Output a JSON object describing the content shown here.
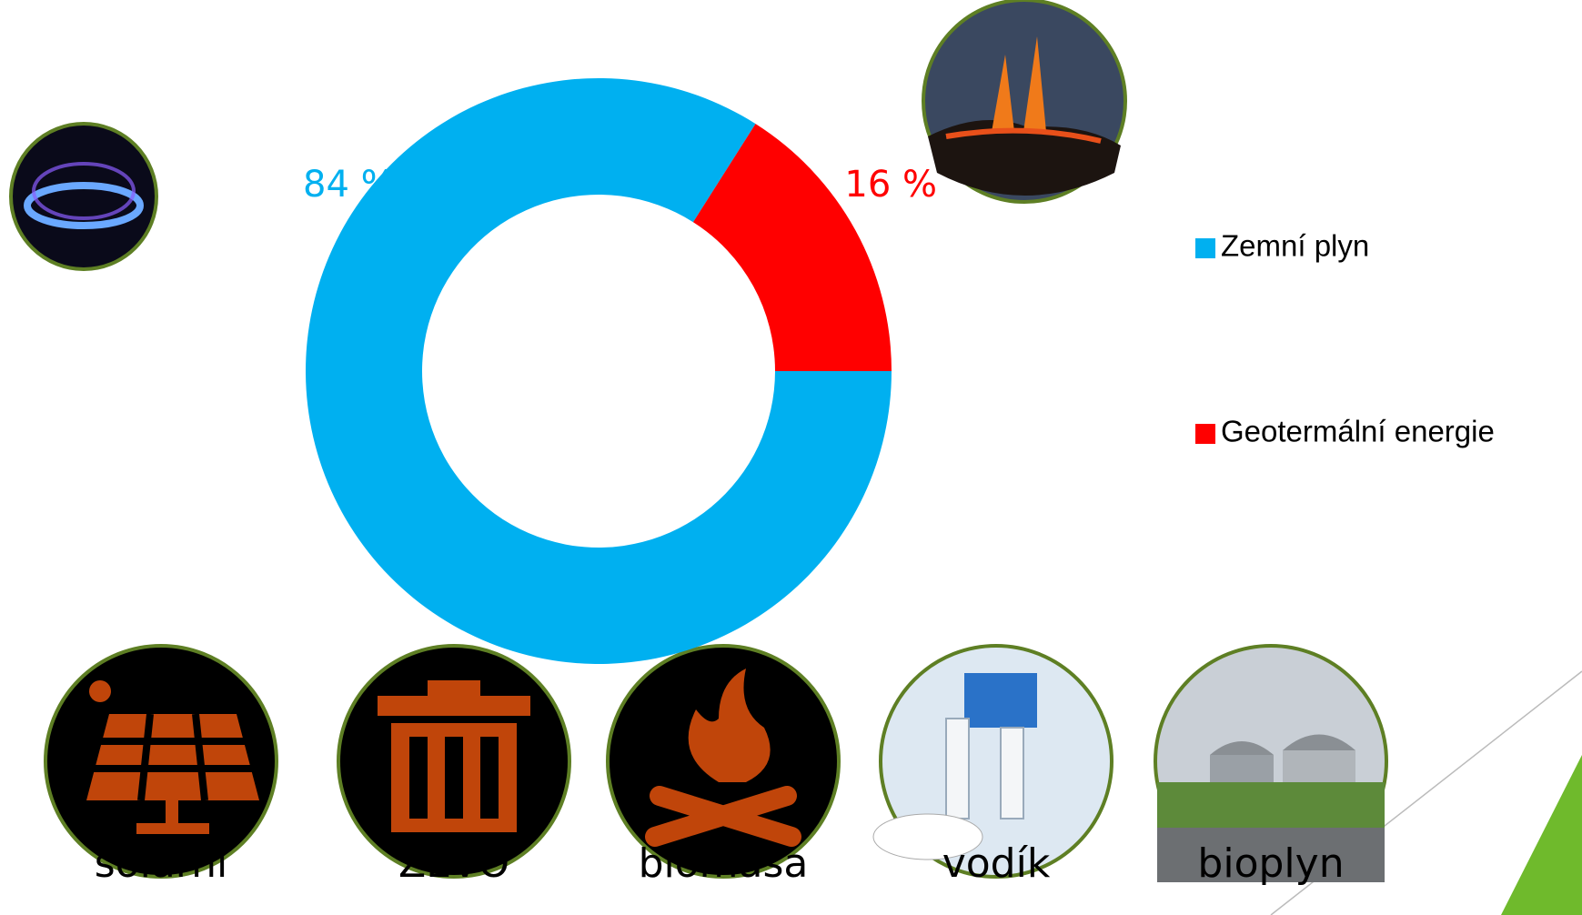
{
  "chart_data": {
    "type": "pie",
    "categories": [
      "Zemní plyn",
      "Geotermální energie"
    ],
    "values": [
      84,
      16
    ],
    "value_labels": [
      "84 %",
      "16 %"
    ],
    "colors": [
      "#00b0f0",
      "#ff0000"
    ],
    "legend": "right"
  },
  "sources": [
    "solární",
    "ZEVO",
    "biomasa",
    "vodík",
    "bioplyn"
  ]
}
